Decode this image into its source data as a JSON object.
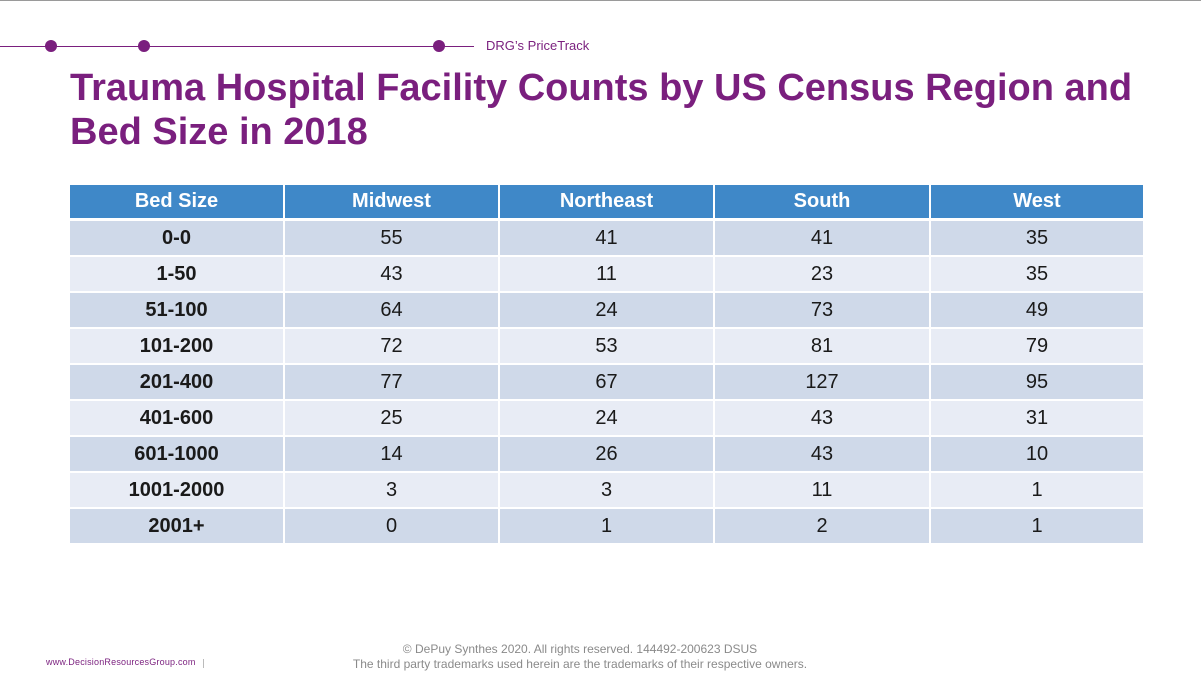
{
  "brand": "DRG’s PriceTrack",
  "title": "Trauma Hospital Facility Counts by US Census Region and Bed Size in 2018",
  "table": {
    "headers": [
      "Bed Size",
      "Midwest",
      "Northeast",
      "South",
      "West"
    ],
    "rows": [
      [
        "0-0",
        "55",
        "41",
        "41",
        "35"
      ],
      [
        "1-50",
        "43",
        "11",
        "23",
        "35"
      ],
      [
        "51-100",
        "64",
        "24",
        "73",
        "49"
      ],
      [
        "101-200",
        "72",
        "53",
        "81",
        "79"
      ],
      [
        "201-400",
        "77",
        "67",
        "127",
        "95"
      ],
      [
        "401-600",
        "25",
        "24",
        "43",
        "31"
      ],
      [
        "601-1000",
        "14",
        "26",
        "43",
        "10"
      ],
      [
        "1001-2000",
        "3",
        "3",
        "11",
        "1"
      ],
      [
        "2001+",
        "0",
        "1",
        "2",
        "1"
      ]
    ]
  },
  "footer": {
    "line1": "© DePuy Synthes 2020. All rights reserved. 144492-200623  DSUS",
    "line2": "The third party trademarks used herein are the trademarks of their respective owners."
  },
  "website": "www.DecisionResourcesGroup.com",
  "colors": {
    "accent": "#7a1f7e",
    "header": "#3f88c8",
    "row_dark": "#cfd9e9",
    "row_light": "#e8ecf5"
  }
}
